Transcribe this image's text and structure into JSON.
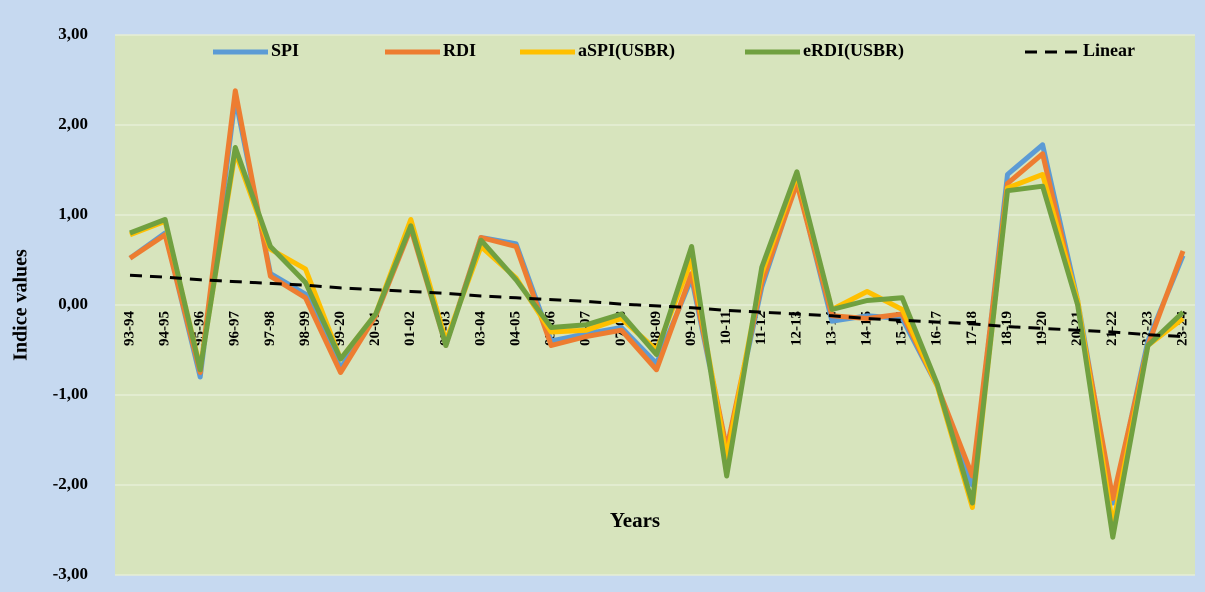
{
  "chart_data": {
    "type": "line",
    "x_label": "Years",
    "y_label": "Indice values",
    "categories": [
      "93-94",
      "94-95",
      "95-96",
      "96-97",
      "97-98",
      "98-99",
      "99-20",
      "20-01",
      "01-02",
      "02-03",
      "03-04",
      "04-05",
      "05-06",
      "06-07",
      "07-08",
      "08-09",
      "09-10",
      "10-11",
      "11-12",
      "12-13",
      "13-14",
      "14-15",
      "15-16",
      "16-17",
      "17-18",
      "18-19",
      "19-20",
      "20-21",
      "21-22",
      "22-23",
      "23-24"
    ],
    "series": [
      {
        "name": "SPI",
        "color": "#5b9bd5",
        "values": [
          0.52,
          0.8,
          -0.8,
          2.3,
          0.35,
          0.12,
          -0.7,
          -0.12,
          0.88,
          -0.45,
          0.75,
          0.68,
          -0.4,
          -0.32,
          -0.25,
          -0.65,
          0.3,
          -1.6,
          0.2,
          1.38,
          -0.18,
          -0.12,
          -0.15,
          -0.9,
          -2.0,
          1.45,
          1.78,
          0.05,
          -2.2,
          -0.4,
          0.55
        ]
      },
      {
        "name": "RDI",
        "color": "#ed7d31",
        "values": [
          0.52,
          0.78,
          -0.75,
          2.38,
          0.32,
          0.08,
          -0.75,
          -0.12,
          0.85,
          -0.45,
          0.75,
          0.65,
          -0.45,
          -0.35,
          -0.28,
          -0.72,
          0.35,
          -1.6,
          0.25,
          1.35,
          -0.12,
          -0.15,
          -0.1,
          -0.9,
          -1.9,
          1.35,
          1.68,
          0.0,
          -2.15,
          -0.45,
          0.6
        ]
      },
      {
        "name": "aSPI(USBR)",
        "color": "#ffc000",
        "values": [
          0.78,
          0.93,
          -0.7,
          1.7,
          0.62,
          0.4,
          -0.6,
          -0.1,
          0.95,
          -0.4,
          0.65,
          0.3,
          -0.3,
          -0.28,
          -0.15,
          -0.5,
          0.5,
          -1.7,
          0.35,
          1.45,
          -0.05,
          0.15,
          -0.05,
          -0.9,
          -2.25,
          1.3,
          1.45,
          0.05,
          -2.45,
          -0.45,
          -0.15
        ]
      },
      {
        "name": "eRDI(USBR)",
        "color": "#70a040",
        "values": [
          0.8,
          0.95,
          -0.72,
          1.75,
          0.65,
          0.25,
          -0.6,
          -0.1,
          0.88,
          -0.45,
          0.72,
          0.28,
          -0.25,
          -0.22,
          -0.1,
          -0.55,
          0.65,
          -1.9,
          0.42,
          1.48,
          -0.05,
          0.05,
          0.08,
          -0.88,
          -2.2,
          1.27,
          1.32,
          0.0,
          -2.58,
          -0.45,
          -0.08
        ]
      },
      {
        "name": "Linear",
        "color": "#000000",
        "dashed": true,
        "values": [
          0.33,
          0.31,
          0.28,
          0.26,
          0.24,
          0.22,
          0.19,
          0.17,
          0.15,
          0.13,
          0.1,
          0.08,
          0.06,
          0.04,
          0.01,
          -0.01,
          -0.03,
          -0.06,
          -0.08,
          -0.1,
          -0.12,
          -0.15,
          -0.17,
          -0.19,
          -0.21,
          -0.24,
          -0.26,
          -0.28,
          -0.3,
          -0.33,
          -0.35
        ]
      }
    ],
    "ylim": [
      -3,
      3
    ],
    "yticks": [
      {
        "value": -3,
        "label": "-3,00"
      },
      {
        "value": -2,
        "label": "-2,00"
      },
      {
        "value": -1,
        "label": "-1,00"
      },
      {
        "value": 0,
        "label": "0,00"
      },
      {
        "value": 1,
        "label": "1,00"
      },
      {
        "value": 2,
        "label": "2,00"
      },
      {
        "value": 3,
        "label": "3,00"
      }
    ],
    "grid": true,
    "legend": "top"
  }
}
